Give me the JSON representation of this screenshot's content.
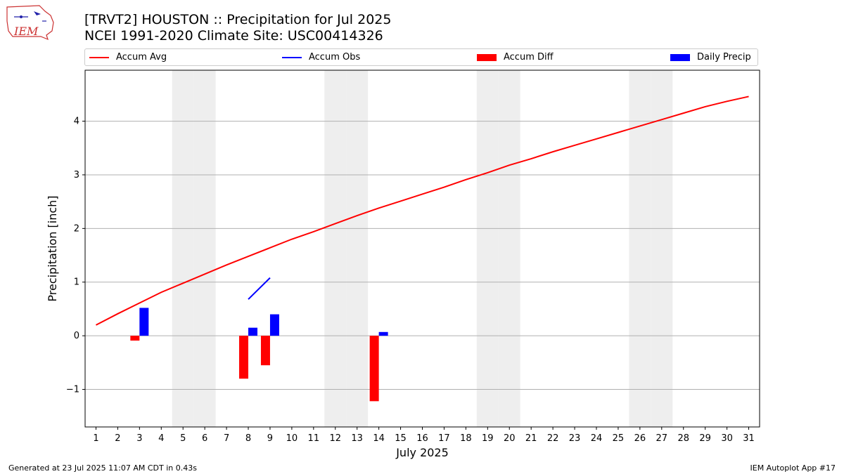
{
  "header": {
    "title": "[TRVT2] HOUSTON :: Precipitation for Jul 2025",
    "subtitle": "NCEI 1991-2020 Climate Site: USC00414326"
  },
  "logo": {
    "text": "IEM"
  },
  "legend": {
    "placement": "top",
    "items": [
      {
        "label": "Accum Avg",
        "color": "#ff0000",
        "kind": "line"
      },
      {
        "label": "Accum Obs",
        "color": "#0000ff",
        "kind": "line"
      },
      {
        "label": "Accum Diff",
        "color": "#ff0000",
        "kind": "box"
      },
      {
        "label": "Daily Precip",
        "color": "#0000ff",
        "kind": "box"
      }
    ]
  },
  "footer": {
    "generated": "Generated at 23 Jul 2025 11:07 AM CDT in 0.43s",
    "app": "IEM Autoplot App #17"
  },
  "chart_data": {
    "type": "bar",
    "xlabel": "July 2025",
    "ylabel": "Precipitation [inch]",
    "xlim": [
      0.5,
      31.5
    ],
    "ylim": [
      -1.7,
      4.95
    ],
    "yticks": [
      -1,
      0,
      1,
      2,
      3,
      4
    ],
    "ytick_labels": [
      "−1",
      "0",
      "1",
      "2",
      "3",
      "4"
    ],
    "grid": "horizontal",
    "weekend_days": [
      5,
      6,
      12,
      13,
      19,
      20,
      26,
      27
    ],
    "weekend_color": "#eeeeee",
    "x": [
      1,
      2,
      3,
      4,
      5,
      6,
      7,
      8,
      9,
      10,
      11,
      12,
      13,
      14,
      15,
      16,
      17,
      18,
      19,
      20,
      21,
      22,
      23,
      24,
      25,
      26,
      27,
      28,
      29,
      30,
      31
    ],
    "series": [
      {
        "name": "Accum Avg",
        "type": "line",
        "color": "#ff0000",
        "values": [
          0.2,
          0.41,
          0.61,
          0.81,
          0.98,
          1.15,
          1.32,
          1.48,
          1.64,
          1.8,
          1.94,
          2.09,
          2.24,
          2.38,
          2.51,
          2.64,
          2.77,
          2.91,
          3.04,
          3.18,
          3.3,
          3.43,
          3.55,
          3.67,
          3.79,
          3.91,
          4.03,
          4.15,
          4.27,
          4.37,
          4.46
        ]
      },
      {
        "name": "Accum Obs",
        "type": "line",
        "color": "#0000ff",
        "points": [
          [
            8,
            0.68
          ],
          [
            9,
            1.08
          ]
        ]
      },
      {
        "name": "Accum Diff",
        "type": "bar",
        "color": "#ff0000",
        "points": [
          [
            3,
            -0.09
          ],
          [
            8,
            -0.8
          ],
          [
            9,
            -0.55
          ],
          [
            14,
            -1.22
          ]
        ]
      },
      {
        "name": "Daily Precip",
        "type": "bar",
        "color": "#0000ff",
        "points": [
          [
            3,
            0.52
          ],
          [
            8,
            0.15
          ],
          [
            9,
            0.4
          ],
          [
            14,
            0.07
          ]
        ]
      }
    ]
  }
}
